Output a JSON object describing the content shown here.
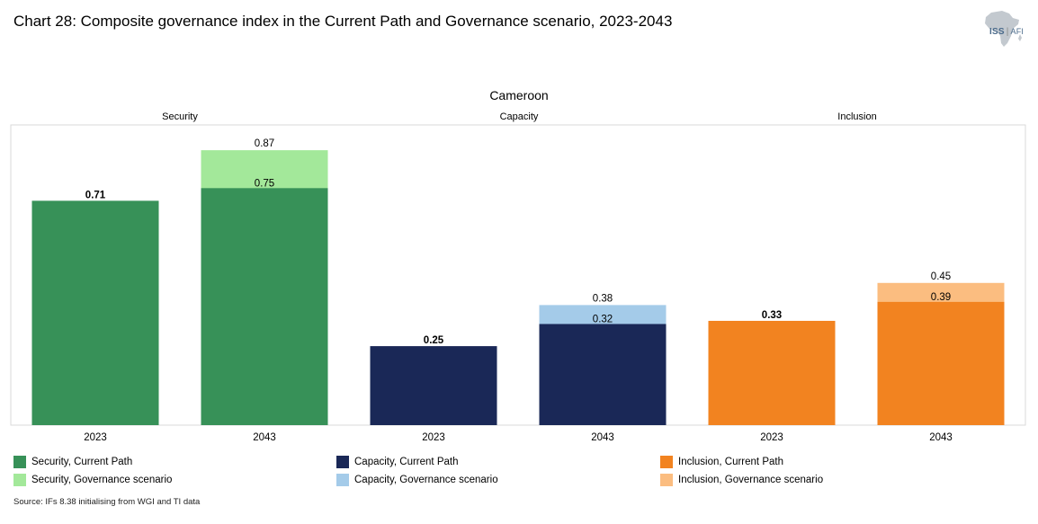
{
  "title": "Chart 28: Composite governance index in the Current Path and Governance scenario, 2023-2043",
  "logo": {
    "icon": "africa-map-icon",
    "text_left": "ISS",
    "text_right": "AFI"
  },
  "colors": {
    "security_cp": "#379158",
    "security_gov": "#a3e89a",
    "capacity_cp": "#1a2857",
    "capacity_gov": "#a4cbe9",
    "inclusion_cp": "#f28320",
    "inclusion_gov": "#fbbd80"
  },
  "chart_data": {
    "type": "bar",
    "title": "Cameroon",
    "stacking": "overlay",
    "ylim": [
      0,
      0.95
    ],
    "grid": false,
    "panels": [
      "Security",
      "Capacity",
      "Inclusion"
    ],
    "categories": [
      "2023",
      "2043",
      "2023",
      "2043",
      "2023",
      "2043"
    ],
    "bars": [
      {
        "panel": "Security",
        "year": "2023",
        "current_path": 0.71,
        "governance": 0.71,
        "cp_label": "0.71",
        "gov_label": "0.71",
        "color_cp": "#379158",
        "color_gov": "#a3e89a"
      },
      {
        "panel": "Security",
        "year": "2043",
        "current_path": 0.75,
        "governance": 0.87,
        "cp_label": "0.75",
        "gov_label": "0.87",
        "color_cp": "#379158",
        "color_gov": "#a3e89a"
      },
      {
        "panel": "Capacity",
        "year": "2023",
        "current_path": 0.25,
        "governance": 0.25,
        "cp_label": "0.25",
        "gov_label": "0.25",
        "color_cp": "#1a2857",
        "color_gov": "#a4cbe9"
      },
      {
        "panel": "Capacity",
        "year": "2043",
        "current_path": 0.32,
        "governance": 0.38,
        "cp_label": "0.32",
        "gov_label": "0.38",
        "color_cp": "#1a2857",
        "color_gov": "#a4cbe9"
      },
      {
        "panel": "Inclusion",
        "year": "2023",
        "current_path": 0.33,
        "governance": 0.33,
        "cp_label": "0.33",
        "gov_label": "0.33",
        "color_cp": "#f28320",
        "color_gov": "#fbbd80"
      },
      {
        "panel": "Inclusion",
        "year": "2043",
        "current_path": 0.39,
        "governance": 0.45,
        "cp_label": "0.39",
        "gov_label": "0.45",
        "color_cp": "#f28320",
        "color_gov": "#fbbd80"
      }
    ],
    "legend": [
      {
        "label": "Security, Current Path",
        "color": "#379158"
      },
      {
        "label": "Security, Governance scenario",
        "color": "#a3e89a"
      },
      {
        "label": "Capacity, Current Path",
        "color": "#1a2857"
      },
      {
        "label": "Capacity, Governance scenario",
        "color": "#a4cbe9"
      },
      {
        "label": "Inclusion, Current Path",
        "color": "#f28320"
      },
      {
        "label": "Inclusion, Governance scenario",
        "color": "#fbbd80"
      }
    ],
    "legend_position": "bottom"
  },
  "source": "Source: IFs 8.38 initialising from WGI and TI data"
}
